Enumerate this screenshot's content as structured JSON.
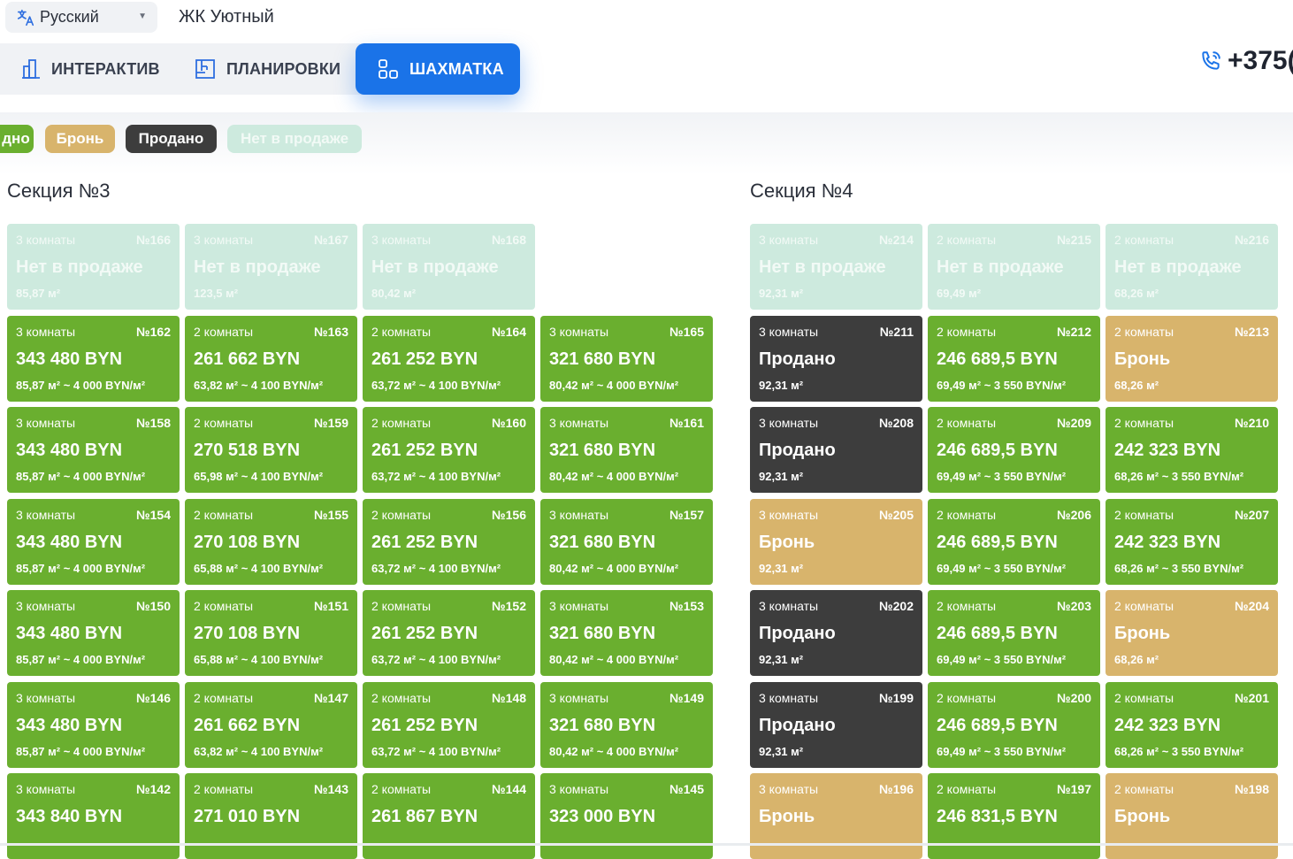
{
  "language": {
    "label": "Русский",
    "icon": "translate-icon"
  },
  "project_title": "ЖК Уютный",
  "tabs": [
    {
      "label": "ИНТЕРАКТИВ",
      "icon": "building-icon",
      "active": false
    },
    {
      "label": "ПЛАНИРОВКИ",
      "icon": "floorplan-icon",
      "active": false
    },
    {
      "label": "ШАХМАТКА",
      "icon": "grid-icon",
      "active": true
    }
  ],
  "phone": {
    "text": "+375(",
    "icon": "phone-icon"
  },
  "legend": [
    {
      "label": "дно",
      "color": "#6aaf2f",
      "text_color": "#ffffff"
    },
    {
      "label": "Бронь",
      "color": "#d8b46c",
      "text_color": "#ffffff"
    },
    {
      "label": "Продано",
      "color": "#3d3d3d",
      "text_color": "#ffffff"
    },
    {
      "label": "Нет в продаже",
      "color": "#cdeade",
      "text_color": "#f2faf6"
    }
  ],
  "colors": {
    "accent": "#1a73e8",
    "available": "#6aaf2f",
    "sold": "#3d3d3d",
    "reserved": "#d8b46c",
    "not_for_sale": "#cdeade"
  },
  "sections": [
    {
      "title": "Секция №3",
      "rows": [
        [
          {
            "rooms": "3 комнаты",
            "num": "№166",
            "status": "na",
            "price": "Нет в продаже",
            "area": "85,87 м²"
          },
          {
            "rooms": "3 комнаты",
            "num": "№167",
            "status": "na",
            "price": "Нет в продаже",
            "area": "123,5 м²"
          },
          {
            "rooms": "3 комнаты",
            "num": "№168",
            "status": "na",
            "price": "Нет в продаже",
            "area": "80,42 м²"
          }
        ],
        [
          {
            "rooms": "3 комнаты",
            "num": "№162",
            "status": "green",
            "price": "343 480 BYN",
            "area": "85,87 м² ~ 4 000 BYN/м²"
          },
          {
            "rooms": "2 комнаты",
            "num": "№163",
            "status": "green",
            "price": "261 662 BYN",
            "area": "63,82 м² ~ 4 100 BYN/м²"
          },
          {
            "rooms": "2 комнаты",
            "num": "№164",
            "status": "green",
            "price": "261 252 BYN",
            "area": "63,72 м² ~ 4 100 BYN/м²"
          },
          {
            "rooms": "3 комнаты",
            "num": "№165",
            "status": "green",
            "price": "321 680 BYN",
            "area": "80,42 м² ~ 4 000 BYN/м²"
          }
        ],
        [
          {
            "rooms": "3 комнаты",
            "num": "№158",
            "status": "green",
            "price": "343 480 BYN",
            "area": "85,87 м² ~ 4 000 BYN/м²"
          },
          {
            "rooms": "2 комнаты",
            "num": "№159",
            "status": "green",
            "price": "270 518 BYN",
            "area": "65,98 м² ~ 4 100 BYN/м²"
          },
          {
            "rooms": "2 комнаты",
            "num": "№160",
            "status": "green",
            "price": "261 252 BYN",
            "area": "63,72 м² ~ 4 100 BYN/м²"
          },
          {
            "rooms": "3 комнаты",
            "num": "№161",
            "status": "green",
            "price": "321 680 BYN",
            "area": "80,42 м² ~ 4 000 BYN/м²"
          }
        ],
        [
          {
            "rooms": "3 комнаты",
            "num": "№154",
            "status": "green",
            "price": "343 480 BYN",
            "area": "85,87 м² ~ 4 000 BYN/м²"
          },
          {
            "rooms": "2 комнаты",
            "num": "№155",
            "status": "green",
            "price": "270 108 BYN",
            "area": "65,88 м² ~ 4 100 BYN/м²"
          },
          {
            "rooms": "2 комнаты",
            "num": "№156",
            "status": "green",
            "price": "261 252 BYN",
            "area": "63,72 м² ~ 4 100 BYN/м²"
          },
          {
            "rooms": "3 комнаты",
            "num": "№157",
            "status": "green",
            "price": "321 680 BYN",
            "area": "80,42 м² ~ 4 000 BYN/м²"
          }
        ],
        [
          {
            "rooms": "3 комнаты",
            "num": "№150",
            "status": "green",
            "price": "343 480 BYN",
            "area": "85,87 м² ~ 4 000 BYN/м²"
          },
          {
            "rooms": "2 комнаты",
            "num": "№151",
            "status": "green",
            "price": "270 108 BYN",
            "area": "65,88 м² ~ 4 100 BYN/м²"
          },
          {
            "rooms": "2 комнаты",
            "num": "№152",
            "status": "green",
            "price": "261 252 BYN",
            "area": "63,72 м² ~ 4 100 BYN/м²"
          },
          {
            "rooms": "3 комнаты",
            "num": "№153",
            "status": "green",
            "price": "321 680 BYN",
            "area": "80,42 м² ~ 4 000 BYN/м²"
          }
        ],
        [
          {
            "rooms": "3 комнаты",
            "num": "№146",
            "status": "green",
            "price": "343 480 BYN",
            "area": "85,87 м² ~ 4 000 BYN/м²"
          },
          {
            "rooms": "2 комнаты",
            "num": "№147",
            "status": "green",
            "price": "261 662 BYN",
            "area": "63,82 м² ~ 4 100 BYN/м²"
          },
          {
            "rooms": "2 комнаты",
            "num": "№148",
            "status": "green",
            "price": "261 252 BYN",
            "area": "63,72 м² ~ 4 100 BYN/м²"
          },
          {
            "rooms": "3 комнаты",
            "num": "№149",
            "status": "green",
            "price": "321 680 BYN",
            "area": "80,42 м² ~ 4 000 BYN/м²"
          }
        ],
        [
          {
            "rooms": "3 комнаты",
            "num": "№142",
            "status": "green",
            "price": "343 840 BYN",
            "area": ""
          },
          {
            "rooms": "2 комнаты",
            "num": "№143",
            "status": "green",
            "price": "271 010 BYN",
            "area": ""
          },
          {
            "rooms": "2 комнаты",
            "num": "№144",
            "status": "green",
            "price": "261 867 BYN",
            "area": ""
          },
          {
            "rooms": "3 комнаты",
            "num": "№145",
            "status": "green",
            "price": "323 000 BYN",
            "area": ""
          }
        ]
      ]
    },
    {
      "title": "Секция №4",
      "rows": [
        [
          {
            "rooms": "3 комнаты",
            "num": "№214",
            "status": "na",
            "price": "Нет в продаже",
            "area": "92,31 м²"
          },
          {
            "rooms": "2 комнаты",
            "num": "№215",
            "status": "na",
            "price": "Нет в продаже",
            "area": "69,49 м²"
          },
          {
            "rooms": "2 комнаты",
            "num": "№216",
            "status": "na",
            "price": "Нет в продаже",
            "area": "68,26 м²"
          }
        ],
        [
          {
            "rooms": "3 комнаты",
            "num": "№211",
            "status": "sold",
            "price": "Продано",
            "area": "92,31 м²"
          },
          {
            "rooms": "2 комнаты",
            "num": "№212",
            "status": "green",
            "price": "246 689,5 BYN",
            "area": "69,49 м² ~ 3 550 BYN/м²"
          },
          {
            "rooms": "2 комнаты",
            "num": "№213",
            "status": "res",
            "price": "Бронь",
            "area": "68,26 м²"
          }
        ],
        [
          {
            "rooms": "3 комнаты",
            "num": "№208",
            "status": "sold",
            "price": "Продано",
            "area": "92,31 м²"
          },
          {
            "rooms": "2 комнаты",
            "num": "№209",
            "status": "green",
            "price": "246 689,5 BYN",
            "area": "69,49 м² ~ 3 550 BYN/м²"
          },
          {
            "rooms": "2 комнаты",
            "num": "№210",
            "status": "green",
            "price": "242 323 BYN",
            "area": "68,26 м² ~ 3 550 BYN/м²"
          }
        ],
        [
          {
            "rooms": "3 комнаты",
            "num": "№205",
            "status": "res",
            "price": "Бронь",
            "area": "92,31 м²"
          },
          {
            "rooms": "2 комнаты",
            "num": "№206",
            "status": "green",
            "price": "246 689,5 BYN",
            "area": "69,49 м² ~ 3 550 BYN/м²"
          },
          {
            "rooms": "2 комнаты",
            "num": "№207",
            "status": "green",
            "price": "242 323 BYN",
            "area": "68,26 м² ~ 3 550 BYN/м²"
          }
        ],
        [
          {
            "rooms": "3 комнаты",
            "num": "№202",
            "status": "sold",
            "price": "Продано",
            "area": "92,31 м²"
          },
          {
            "rooms": "2 комнаты",
            "num": "№203",
            "status": "green",
            "price": "246 689,5 BYN",
            "area": "69,49 м² ~ 3 550 BYN/м²"
          },
          {
            "rooms": "2 комнаты",
            "num": "№204",
            "status": "res",
            "price": "Бронь",
            "area": "68,26 м²"
          }
        ],
        [
          {
            "rooms": "3 комнаты",
            "num": "№199",
            "status": "sold",
            "price": "Продано",
            "area": "92,31 м²"
          },
          {
            "rooms": "2 комнаты",
            "num": "№200",
            "status": "green",
            "price": "246 689,5 BYN",
            "area": "69,49 м² ~ 3 550 BYN/м²"
          },
          {
            "rooms": "2 комнаты",
            "num": "№201",
            "status": "green",
            "price": "242 323 BYN",
            "area": "68,26 м² ~ 3 550 BYN/м²"
          }
        ],
        [
          {
            "rooms": "3 комнаты",
            "num": "№196",
            "status": "res",
            "price": "Бронь",
            "area": ""
          },
          {
            "rooms": "2 комнаты",
            "num": "№197",
            "status": "green",
            "price": "246 831,5 BYN",
            "area": ""
          },
          {
            "rooms": "2 комнаты",
            "num": "№198",
            "status": "res",
            "price": "Бронь",
            "area": ""
          }
        ]
      ]
    }
  ]
}
